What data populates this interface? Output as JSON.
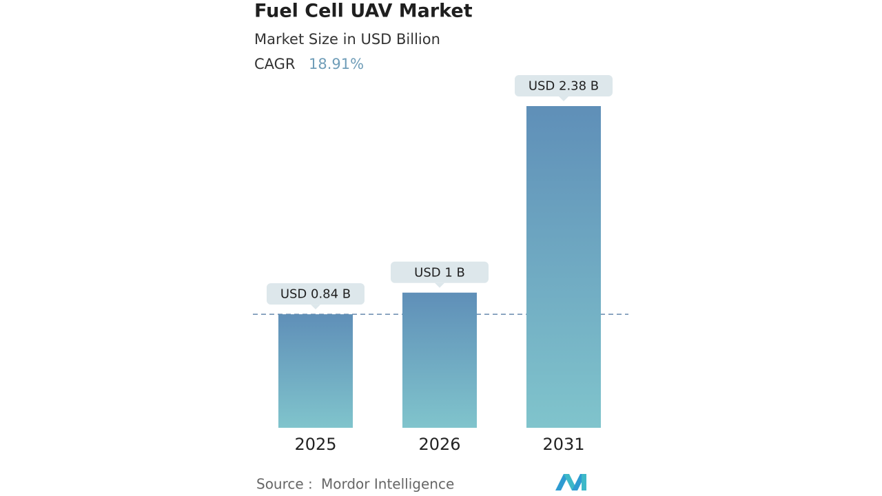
{
  "chart_data": {
    "type": "bar",
    "title": "Fuel Cell UAV Market",
    "subtitle": "Market Size in USD Billion",
    "cagr_label": "CAGR",
    "cagr": "18.91%",
    "categories": [
      "2025",
      "2026",
      "2031"
    ],
    "values": [
      0.84,
      1,
      2.38
    ],
    "value_labels": [
      "USD 0.84 B",
      "USD 1 B",
      "USD 2.38 B"
    ],
    "color_top": "#5f8fb8",
    "color_bottom": "#80c4cc",
    "source_label": "Source :",
    "source": "Mordor Intelligence"
  }
}
